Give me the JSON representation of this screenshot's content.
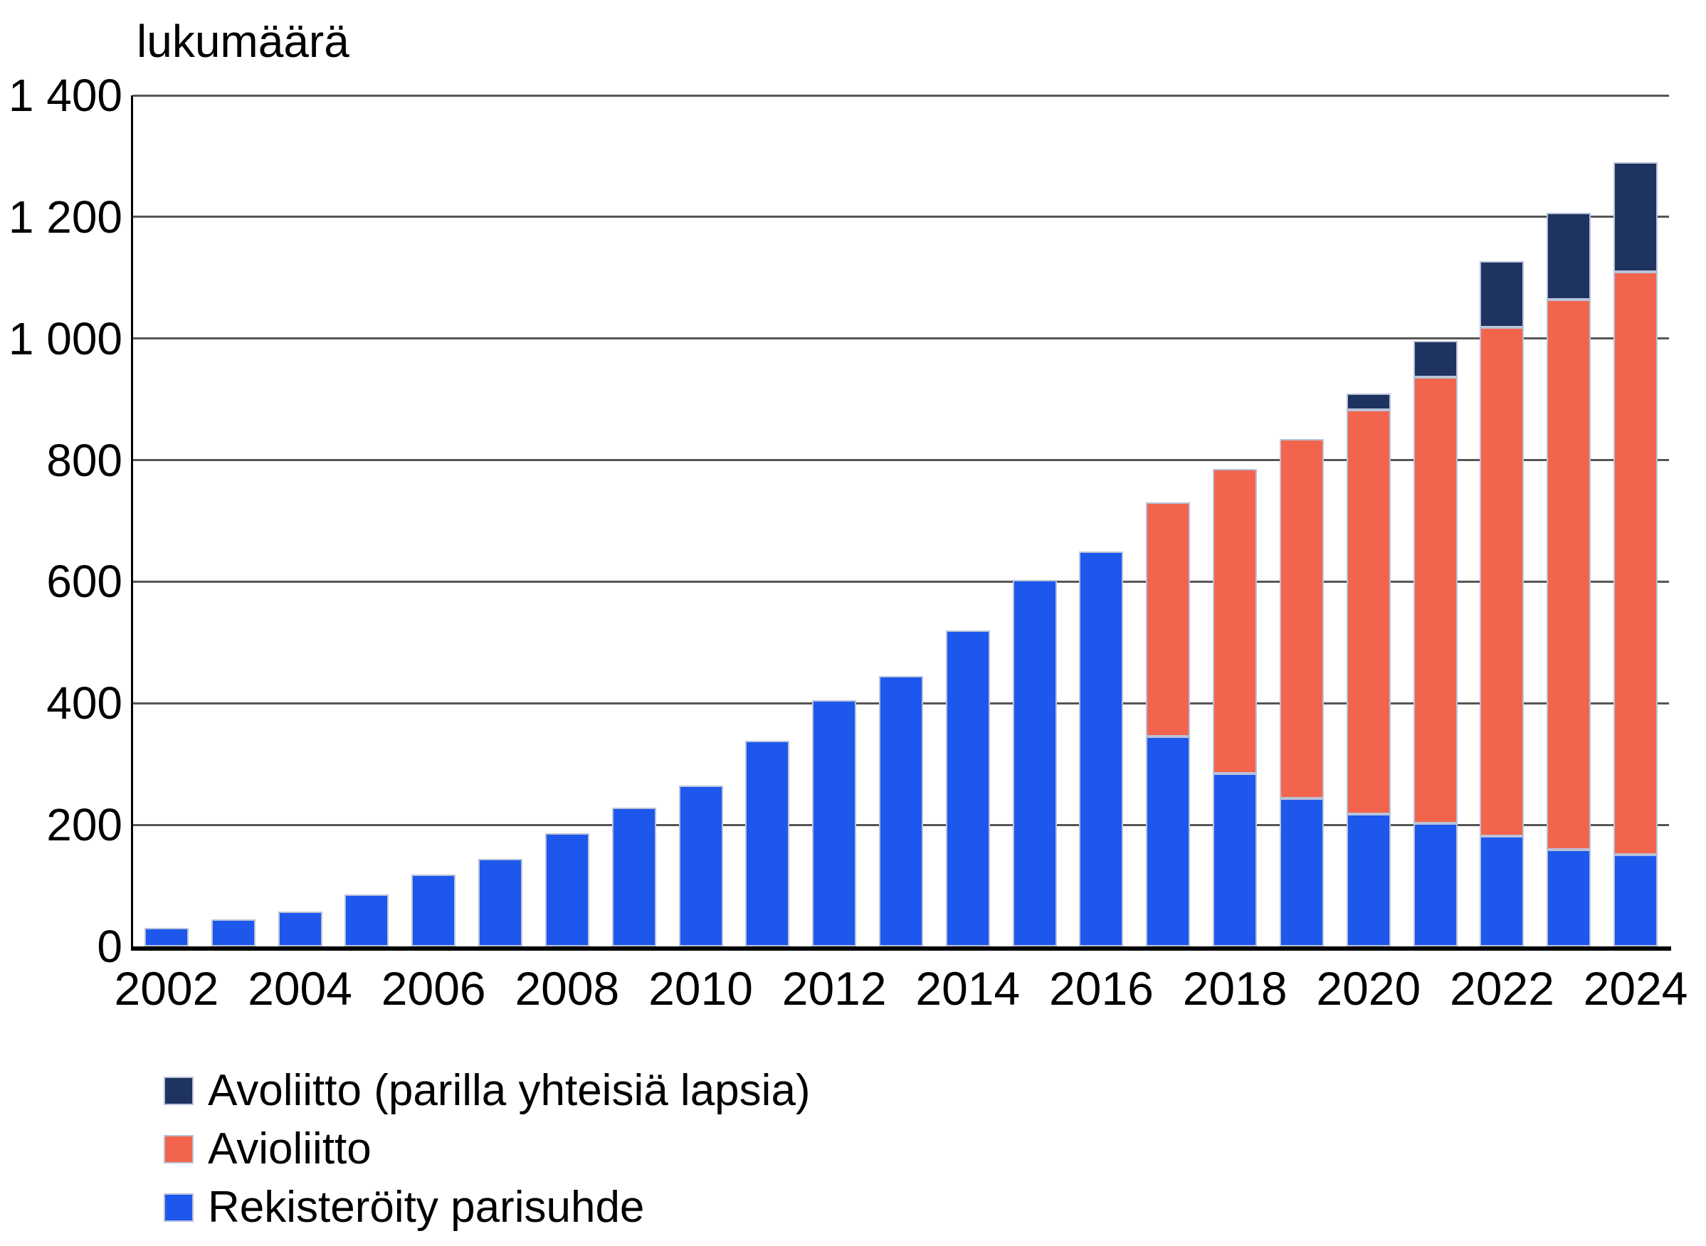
{
  "figure": {
    "background": "#ffffff",
    "axis_unit_label": "lukumäärä"
  },
  "chart_data": {
    "type": "bar",
    "stacked": true,
    "title": "",
    "xlabel": "",
    "ylabel": "lukumäärä",
    "grid": true,
    "gridline_color": "#565656",
    "axis_color": "#000000",
    "bar_outline_color": "#b9c2da",
    "ylim": [
      0,
      1400
    ],
    "y_ticks": [
      {
        "value": 0,
        "label": "0"
      },
      {
        "value": 200,
        "label": "200"
      },
      {
        "value": 400,
        "label": "400"
      },
      {
        "value": 600,
        "label": "600"
      },
      {
        "value": 800,
        "label": "800"
      },
      {
        "value": 1000,
        "label": "1 000"
      },
      {
        "value": 1200,
        "label": "1 200"
      },
      {
        "value": 1400,
        "label": "1 400"
      }
    ],
    "categories": [
      2002,
      2003,
      2004,
      2005,
      2006,
      2007,
      2008,
      2009,
      2010,
      2011,
      2012,
      2013,
      2014,
      2015,
      2016,
      2017,
      2018,
      2019,
      2020,
      2021,
      2022,
      2023,
      2024
    ],
    "x_tick_labels": [
      "2002",
      "2004",
      "2006",
      "2008",
      "2010",
      "2012",
      "2014",
      "2016",
      "2018",
      "2020",
      "2022",
      "2024"
    ],
    "series": [
      {
        "name": "Rekisteröity parisuhde",
        "color": "#1D57EC",
        "values": [
          30,
          45,
          57,
          85,
          118,
          144,
          186,
          228,
          265,
          338,
          405,
          445,
          520,
          603,
          650,
          345,
          285,
          244,
          218,
          203,
          182,
          159,
          151
        ]
      },
      {
        "name": "Avioliitto",
        "color": "#F2654C",
        "values": [
          0,
          0,
          0,
          0,
          0,
          0,
          0,
          0,
          0,
          0,
          0,
          0,
          0,
          0,
          0,
          385,
          500,
          591,
          665,
          733,
          836,
          905,
          959
        ]
      },
      {
        "name": "Avoliitto (parilla yhteisiä lapsia)",
        "color": "#1F3360",
        "values": [
          0,
          0,
          0,
          0,
          0,
          0,
          0,
          0,
          0,
          0,
          0,
          0,
          0,
          0,
          0,
          0,
          0,
          0,
          27,
          60,
          109,
          143,
          180
        ]
      }
    ],
    "legend_position": "bottom-left",
    "legend": [
      {
        "label": "Avoliitto (parilla yhteisiä lapsia)",
        "color": "#1F3360"
      },
      {
        "label": "Avioliitto",
        "color": "#F2654C"
      },
      {
        "label": "Rekisteröity parisuhde",
        "color": "#1D57EC"
      }
    ]
  }
}
